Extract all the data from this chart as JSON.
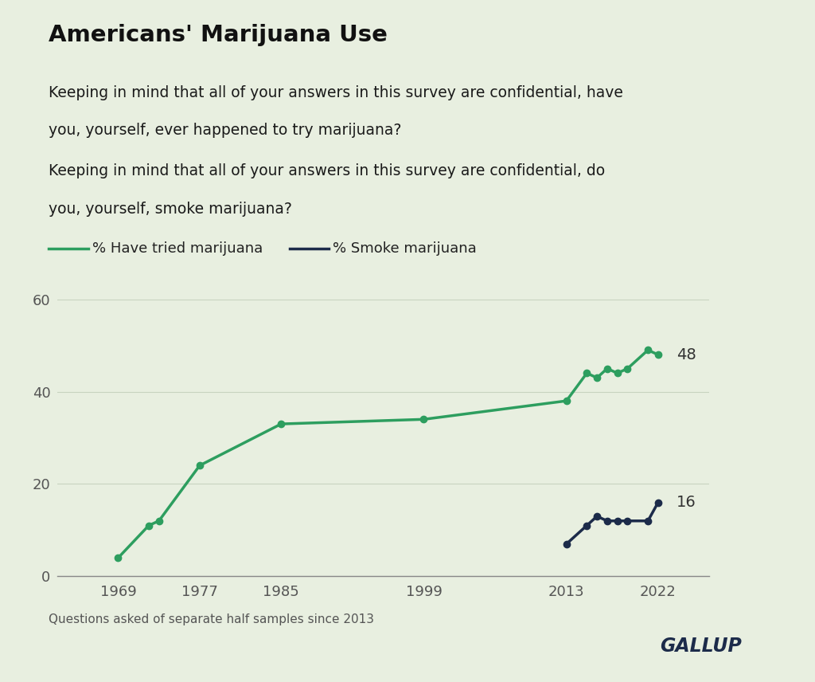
{
  "title": "Americans' Marijuana Use",
  "subtitle_line1": "Keeping in mind that all of your answers in this survey are confidential, have",
  "subtitle_line2": "you, yourself, ever happened to try marijuana?",
  "subtitle_line3": "Keeping in mind that all of your answers in this survey are confidential, do",
  "subtitle_line4": "you, yourself, smoke marijuana?",
  "footnote": "Questions asked of separate half samples since 2013",
  "gallup_label": "GALLUP",
  "background_color": "#e8efe0",
  "green_color": "#2d9e5f",
  "navy_color": "#1c2b4a",
  "tried_years": [
    1969,
    1972,
    1973,
    1977,
    1985,
    1999,
    2013,
    2015,
    2016,
    2017,
    2018,
    2019,
    2021,
    2022
  ],
  "tried_values": [
    4,
    11,
    12,
    24,
    33,
    34,
    38,
    44,
    43,
    45,
    44,
    45,
    49,
    48
  ],
  "smoke_years": [
    2013,
    2015,
    2016,
    2017,
    2018,
    2019,
    2021,
    2022
  ],
  "smoke_values": [
    7,
    11,
    13,
    12,
    12,
    12,
    12,
    16
  ],
  "end_label_tried": "48",
  "end_label_smoke": "16",
  "legend_tried": "% Have tried marijuana",
  "legend_smoke": "% Smoke marijuana",
  "ylim": [
    0,
    65
  ],
  "yticks": [
    0,
    20,
    40,
    60
  ],
  "xtick_labels": [
    "1969",
    "1977",
    "1985",
    "1999",
    "2013",
    "2022"
  ],
  "xtick_positions": [
    1969,
    1977,
    1985,
    1999,
    2013,
    2022
  ]
}
